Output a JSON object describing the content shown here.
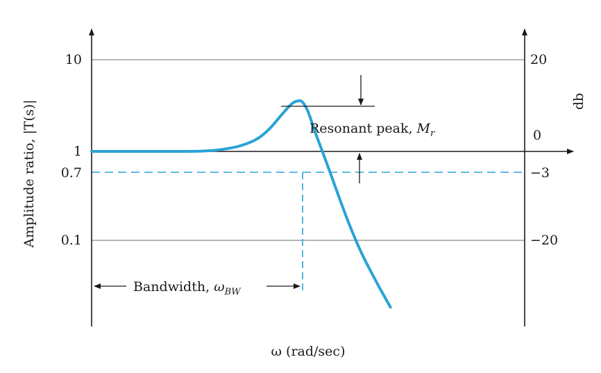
{
  "chart_data": {
    "type": "line",
    "title": "",
    "xlabel": "ω (rad/sec)",
    "ylabel_left": "Amplitude ratio, |T(s)|",
    "ylabel_right": "db",
    "left_ticks": [
      "10",
      "1",
      "0.7",
      "0.1"
    ],
    "right_ticks": [
      "20",
      "0",
      "−3",
      "−20"
    ],
    "grid": true,
    "series": [
      {
        "color": "#2aa3d6",
        "points": [
          [
            0.0,
            1.0
          ],
          [
            0.12,
            1.0
          ],
          [
            0.22,
            1.0
          ],
          [
            0.26,
            1.01
          ],
          [
            0.3,
            1.05
          ],
          [
            0.34,
            1.14
          ],
          [
            0.38,
            1.35
          ],
          [
            0.41,
            1.75
          ],
          [
            0.44,
            2.55
          ],
          [
            0.462,
            3.3
          ],
          [
            0.476,
            3.55
          ],
          [
            0.487,
            3.45
          ],
          [
            0.5,
            2.7
          ],
          [
            0.52,
            1.45
          ],
          [
            0.545,
            0.7
          ],
          [
            0.57,
            0.33
          ],
          [
            0.595,
            0.16
          ],
          [
            0.625,
            0.075
          ],
          [
            0.66,
            0.036
          ],
          [
            0.69,
            0.02
          ]
        ]
      }
    ],
    "reference_lines": [
      {
        "amplitude": 0.7,
        "db": -3,
        "style": "dashed",
        "color": "#2aa3d6"
      }
    ],
    "annotations": {
      "resonant_peak": {
        "text": "Resonant peak, ",
        "symbol": "M",
        "subscript": "r"
      },
      "bandwidth": {
        "text": "Bandwidth, ",
        "symbol": "ω",
        "subscript": "BW"
      }
    }
  }
}
